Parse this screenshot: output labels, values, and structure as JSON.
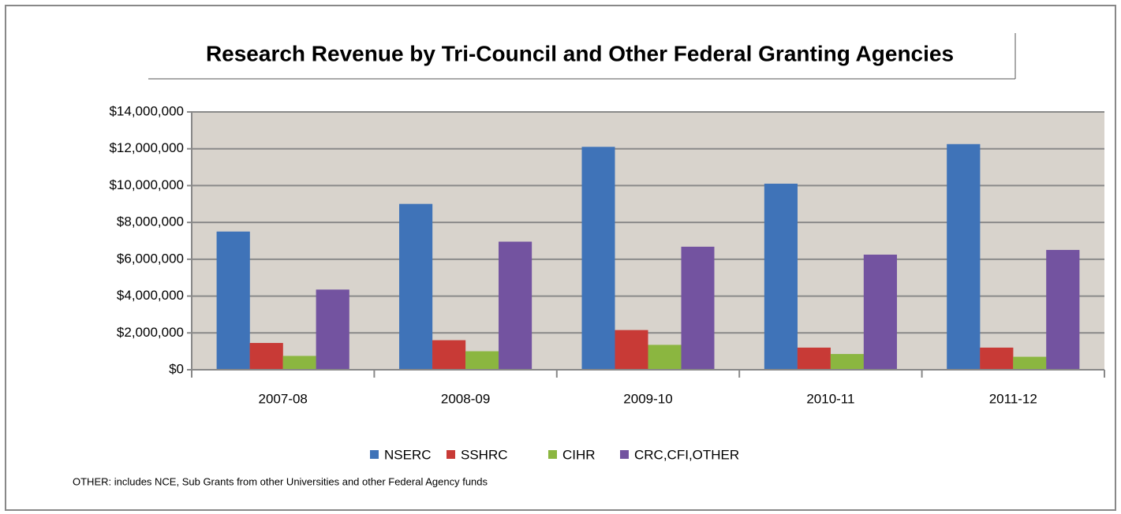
{
  "chart_data": {
    "type": "bar",
    "title": "Research Revenue by Tri-Council and Other Federal Granting Agencies",
    "categories": [
      "2007-08",
      "2008-09",
      "2009-10",
      "2010-11",
      "2011-12"
    ],
    "series": [
      {
        "name": "NSERC",
        "color": "#3f73b8",
        "values": [
          7500000,
          9000000,
          12100000,
          10100000,
          12250000
        ]
      },
      {
        "name": "SSHRC",
        "color": "#c83a36",
        "values": [
          1450000,
          1600000,
          2150000,
          1200000,
          1200000
        ]
      },
      {
        "name": "CIHR",
        "color": "#8bb640",
        "values": [
          750000,
          1000000,
          1350000,
          850000,
          700000
        ]
      },
      {
        "name": "CRC,CFI,OTHER",
        "color": "#7353a0",
        "values": [
          4350000,
          6950000,
          6680000,
          6250000,
          6500000
        ]
      }
    ],
    "ylim": [
      0,
      14000000
    ],
    "yticks": [
      {
        "value": 0,
        "label": "$0"
      },
      {
        "value": 2000000,
        "label": "$2,000,000"
      },
      {
        "value": 4000000,
        "label": "$4,000,000"
      },
      {
        "value": 6000000,
        "label": "$6,000,000"
      },
      {
        "value": 8000000,
        "label": "$8,000,000"
      },
      {
        "value": 10000000,
        "label": "$10,000,000"
      },
      {
        "value": 12000000,
        "label": "$12,000,000"
      },
      {
        "value": 14000000,
        "label": "$14,000,000"
      }
    ],
    "grid": true,
    "legend": "bottom",
    "annotation": "OTHER: includes NCE, Sub Grants from other Universities and other Federal Agency funds"
  }
}
